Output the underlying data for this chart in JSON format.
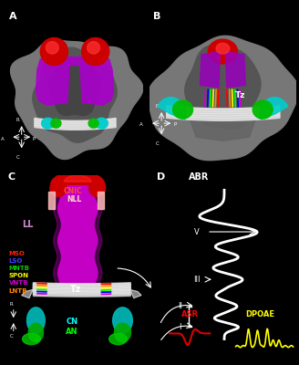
{
  "bg_color": "#000000",
  "legend_items": [
    {
      "label": "MSO",
      "color": "#ff2200"
    },
    {
      "label": "LSO",
      "color": "#4444ff"
    },
    {
      "label": "MNTB",
      "color": "#00cc00"
    },
    {
      "label": "SPON",
      "color": "#ffff00"
    },
    {
      "label": "VNTB",
      "color": "#cc00cc"
    },
    {
      "label": "LNTB",
      "color": "#ff8800"
    }
  ],
  "nuclei_colors": [
    "#ff0000",
    "#ff8800",
    "#ffff00",
    "#00ff00",
    "#0000ff",
    "#cc00cc"
  ],
  "panel_bg": "#303030",
  "brain_gray": "#888888",
  "brain_dark": "#555555",
  "brain_mid": "#666666",
  "purple": "#aa00aa",
  "bright_purple": "#cc00cc",
  "red": "#cc0000",
  "bright_red": "#ff2200",
  "cyan": "#00cccc",
  "green": "#00bb00",
  "white": "#ffffff",
  "light_gray": "#cccccc",
  "pink": "#ffaaaa",
  "yellow": "#ffff00",
  "orange": "#ff8800"
}
